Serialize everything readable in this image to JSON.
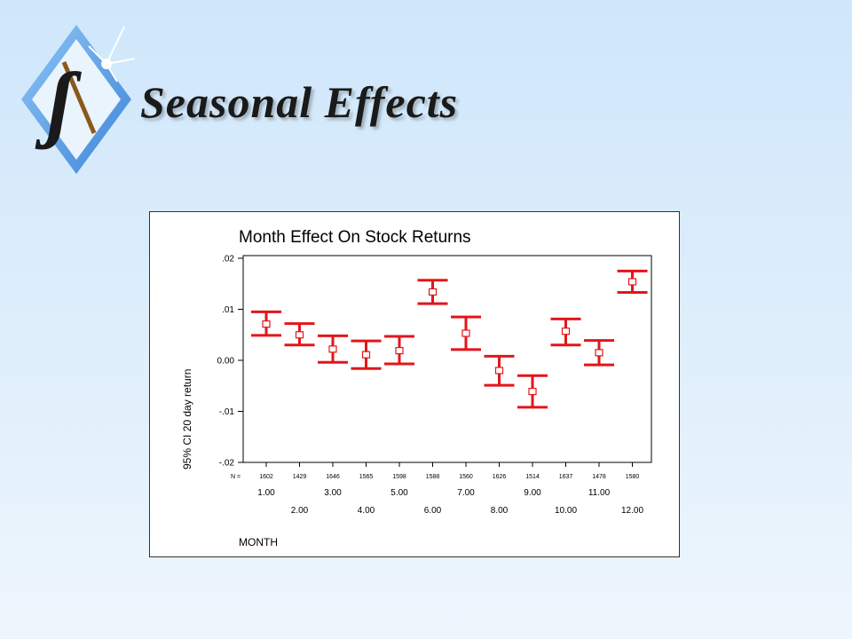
{
  "slide": {
    "title": "Seasonal Effects"
  },
  "logo": {
    "letter": "ʃ"
  },
  "colors": {
    "errorbar": "#e3151a",
    "logo_diamond": "#5aa0e6"
  },
  "chart_data": {
    "type": "errorbar",
    "title": "Month Effect On Stock Returns",
    "xlabel": "MONTH",
    "ylabel": "95% CI 20 day return",
    "ylim": [
      -0.02,
      0.02
    ],
    "yticks": [
      {
        "value": 0.02,
        "label": ".02"
      },
      {
        "value": 0.01,
        "label": ".01"
      },
      {
        "value": 0.0,
        "label": "0.00"
      },
      {
        "value": -0.01,
        "label": "-.01"
      },
      {
        "value": -0.02,
        "label": "-.02"
      }
    ],
    "n_label": "N =",
    "categories": [
      "1.00",
      "2.00",
      "3.00",
      "4.00",
      "5.00",
      "6.00",
      "7.00",
      "8.00",
      "9.00",
      "10.00",
      "11.00",
      "12.00"
    ],
    "n": [
      "1602",
      "1429",
      "1646",
      "1565",
      "1598",
      "1588",
      "1560",
      "1626",
      "1514",
      "1637",
      "1478",
      "1580"
    ],
    "mean": [
      0.0071,
      0.005,
      0.0022,
      0.0011,
      0.0019,
      0.0134,
      0.0053,
      -0.002,
      -0.0061,
      0.0057,
      0.0015,
      0.0154
    ],
    "lower": [
      0.0049,
      0.003,
      -0.0004,
      -0.0016,
      -0.0007,
      0.0111,
      0.0021,
      -0.0049,
      -0.0092,
      0.003,
      -0.0009,
      0.0133
    ],
    "upper": [
      0.0095,
      0.0072,
      0.0048,
      0.0038,
      0.0047,
      0.0157,
      0.0085,
      0.0008,
      -0.003,
      0.0081,
      0.0039,
      0.0175
    ]
  }
}
